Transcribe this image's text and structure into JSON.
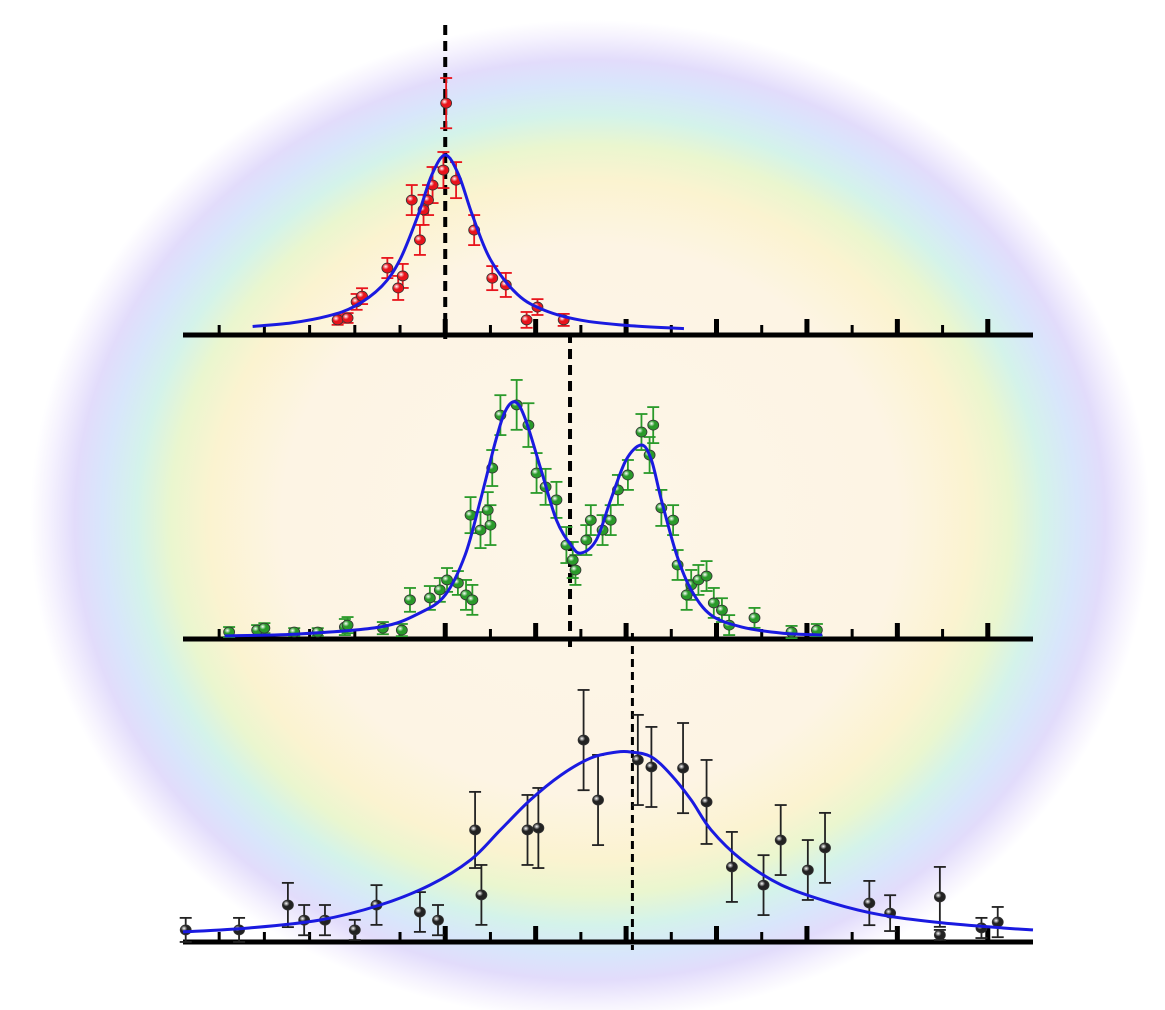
{
  "chart_data": [
    {
      "type": "scatter",
      "xlim": [
        -4,
        90
      ],
      "ylim": [
        0,
        100
      ],
      "xticks": [
        0,
        5,
        10,
        15,
        20,
        25,
        30,
        35,
        40,
        45,
        50,
        55,
        60,
        65,
        70,
        75,
        80,
        85
      ],
      "vline": 25,
      "points": {
        "color": "#e8141c",
        "x": [
          13.1,
          14.2,
          15.2,
          15.8,
          18.6,
          19.8,
          20.3,
          21.3,
          22.2,
          22.6,
          23.1,
          23.6,
          24.8,
          25.1,
          26.2,
          28.2,
          30.2,
          31.7,
          34.0,
          35.2,
          38.1
        ],
        "y": [
          4.8,
          5.5,
          11.4,
          13.5,
          23.8,
          16.5,
          20.9,
          48.7,
          34.1,
          45.1,
          48.7,
          54.2,
          59.7,
          84.2,
          56.0,
          37.7,
          20.1,
          17.6,
          4.8,
          9.5,
          4.8
        ],
        "error": [
          1.8,
          1.8,
          2.9,
          2.9,
          3.7,
          4.4,
          4.4,
          5.5,
          5.5,
          5.5,
          5.5,
          6.6,
          6.6,
          9.2,
          6.6,
          5.5,
          4.4,
          4.4,
          2.9,
          2.9,
          2.2
        ]
      },
      "fit": {
        "color": "#1a1ae0",
        "x": [
          3.7,
          8,
          12,
          15,
          18,
          20,
          22,
          23.5,
          25,
          26.5,
          28,
          30,
          33,
          36,
          40,
          45,
          51.4
        ],
        "y": [
          2.4,
          3.7,
          6.2,
          9.8,
          17.2,
          26.9,
          43.2,
          57.8,
          65.2,
          57.8,
          43.2,
          26.9,
          14.1,
          8.3,
          4.7,
          2.8,
          1.6
        ]
      }
    },
    {
      "type": "scatter",
      "xlim": [
        -4,
        90
      ],
      "ylim": [
        0,
        100
      ],
      "xticks": [
        0,
        5,
        10,
        15,
        20,
        25,
        30,
        35,
        40,
        45,
        50,
        55,
        60,
        65,
        70,
        75,
        80,
        85
      ],
      "vline": 38.8,
      "points": {
        "color": "#2a9a2a",
        "x": [
          1.1,
          4.2,
          5.0,
          8.3,
          10.9,
          13.9,
          14.2,
          18.1,
          20.2,
          21.1,
          23.3,
          24.4,
          25.2,
          26.4,
          27.3,
          28.0,
          27.8,
          28.9,
          29.7,
          30.0,
          30.2,
          31.1,
          32.9,
          34.2,
          35.1,
          36.1,
          37.3,
          38.4,
          39.1,
          39.4,
          40.6,
          41.1,
          42.4,
          43.3,
          44.1,
          45.2,
          46.7,
          48.0,
          47.6,
          48.9,
          50.2,
          50.7,
          51.7,
          52.2,
          53.0,
          53.9,
          54.7,
          55.6,
          56.4,
          59.2,
          63.3,
          66.1
        ],
        "y": [
          1.8,
          2.5,
          3.2,
          1.8,
          1.8,
          3.6,
          4.3,
          3.2,
          2.5,
          13.4,
          14.1,
          17.0,
          20.6,
          19.5,
          15.2,
          13.4,
          44.0,
          38.6,
          45.8,
          40.4,
          61.0,
          80.1,
          83.8,
          76.5,
          59.2,
          54.2,
          49.5,
          33.2,
          27.8,
          24.2,
          35.0,
          42.2,
          38.6,
          42.2,
          53.1,
          58.5,
          74.0,
          76.5,
          65.7,
          46.6,
          42.2,
          26.0,
          15.2,
          18.8,
          20.6,
          22.0,
          12.3,
          9.7,
          4.3,
          6.9,
          1.8,
          2.5
        ],
        "error": [
          1.8,
          1.8,
          1.8,
          1.4,
          1.4,
          2.9,
          2.9,
          2.2,
          2.2,
          4.3,
          4.3,
          4.3,
          4.3,
          4.3,
          5.4,
          5.4,
          6.5,
          6.5,
          6.5,
          7.2,
          6.5,
          7.2,
          9.0,
          7.9,
          7.2,
          6.5,
          6.5,
          6.5,
          6.5,
          5.4,
          5.4,
          5.4,
          5.4,
          5.4,
          5.4,
          5.4,
          6.5,
          6.5,
          6.5,
          6.5,
          5.4,
          5.4,
          5.4,
          5.4,
          5.4,
          5.4,
          5.4,
          4.3,
          3.6,
          3.6,
          2.2,
          2.2
        ]
      },
      "fit": {
        "color": "#1a1ae0",
        "x": [
          0.6,
          8.9,
          17.8,
          22.2,
          25.0,
          27.2,
          28.9,
          30.6,
          31.7,
          32.8,
          33.9,
          35.6,
          37.3,
          38.9,
          40.0,
          41.7,
          43.3,
          45.0,
          46.7,
          47.8,
          48.9,
          50.6,
          52.2,
          54.4,
          57.8,
          62.2,
          66.7
        ],
        "y": [
          0.4,
          1.1,
          3.6,
          8.7,
          15.2,
          29.6,
          49.5,
          71.1,
          81.9,
          84.8,
          78.3,
          60.3,
          42.2,
          33.2,
          30.3,
          35.0,
          49.5,
          63.9,
          69.3,
          63.9,
          49.5,
          29.6,
          17.0,
          7.9,
          3.6,
          1.4,
          0.7
        ]
      }
    },
    {
      "type": "scatter",
      "xlim": [
        -4,
        90
      ],
      "ylim": [
        0,
        100
      ],
      "xticks": [
        0,
        5,
        10,
        15,
        20,
        25,
        30,
        35,
        40,
        45,
        50,
        55,
        60,
        65,
        70,
        75,
        80,
        85
      ],
      "vline": 45.7,
      "points": {
        "color": "#222222",
        "x": [
          -3.7,
          2.2,
          7.6,
          9.4,
          11.7,
          15.0,
          17.4,
          22.2,
          24.2,
          28.3,
          29.0,
          34.1,
          35.3,
          40.3,
          41.9,
          46.3,
          47.8,
          51.3,
          53.9,
          56.7,
          60.2,
          62.1,
          65.1,
          67.0,
          71.9,
          74.2,
          79.7,
          79.7,
          84.3,
          86.1
        ],
        "y": [
          3.6,
          3.6,
          12.5,
          7.1,
          7.1,
          3.6,
          12.5,
          10.0,
          7.1,
          39.3,
          16.1,
          39.3,
          40.0,
          71.4,
          50.0,
          64.3,
          61.8,
          61.4,
          49.3,
          26.1,
          19.6,
          35.7,
          25.0,
          32.9,
          13.2,
          9.6,
          15.4,
          1.8,
          4.3,
          6.4
        ],
        "error": [
          4.3,
          4.3,
          7.9,
          5.4,
          5.4,
          3.6,
          7.1,
          7.1,
          5.4,
          13.6,
          10.7,
          12.5,
          14.3,
          17.9,
          16.1,
          16.1,
          14.3,
          16.1,
          15.0,
          12.5,
          10.7,
          12.5,
          10.7,
          12.5,
          7.9,
          6.4,
          10.7,
          1.8,
          3.6,
          5.4
        ]
      },
      "fit": {
        "color": "#1a1ae0",
        "x": [
          -4,
          3.3,
          11.1,
          17.8,
          23.3,
          27.8,
          31.1,
          34.4,
          37.8,
          41.1,
          43.9,
          45.6,
          47.8,
          50.0,
          52.2,
          54.4,
          57.8,
          62.2,
          67.8,
          73.3,
          80.0,
          86.7,
          90
        ],
        "y": [
          2.9,
          4.3,
          7.1,
          12.5,
          19.6,
          28.6,
          39.3,
          50.0,
          58.9,
          65.0,
          67.1,
          67.1,
          65.4,
          58.9,
          50.0,
          39.3,
          28.6,
          19.6,
          13.2,
          8.9,
          6.1,
          4.3,
          3.6
        ]
      }
    }
  ]
}
